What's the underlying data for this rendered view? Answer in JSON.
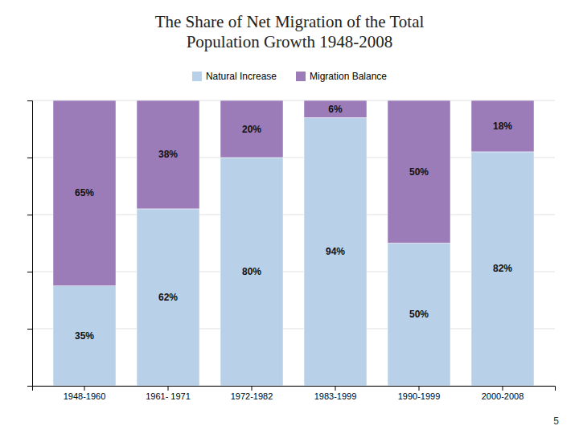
{
  "chart_data": {
    "type": "bar",
    "title": "The Share of Net Migration of the Total\nPopulation Growth 1948-2008",
    "categories": [
      "1948-1960",
      "1961- 1971",
      "1972-1982",
      "1983-1999",
      "1990-1999",
      "2000-2008"
    ],
    "series": [
      {
        "name": "Natural Increase",
        "color": "#b8d0e8",
        "values": [
          35,
          62,
          80,
          94,
          50,
          82
        ],
        "value_labels": [
          "35%",
          "62%",
          "80%",
          "94%",
          "50%",
          "82%"
        ]
      },
      {
        "name": "Migration Balance",
        "color": "#9b7bb8",
        "values": [
          65,
          38,
          20,
          6,
          50,
          18
        ],
        "value_labels": [
          "65%",
          "38%",
          "20%",
          "6%",
          "50%",
          "18%"
        ]
      }
    ],
    "stacked": true,
    "data_labels": true,
    "ylim": [
      0,
      100
    ],
    "yticks": [
      0,
      20,
      40,
      60,
      80,
      100
    ],
    "grid": true,
    "tick_labels": "x",
    "legend": "top",
    "annotations": [
      {
        "text": "5"
      }
    ]
  }
}
